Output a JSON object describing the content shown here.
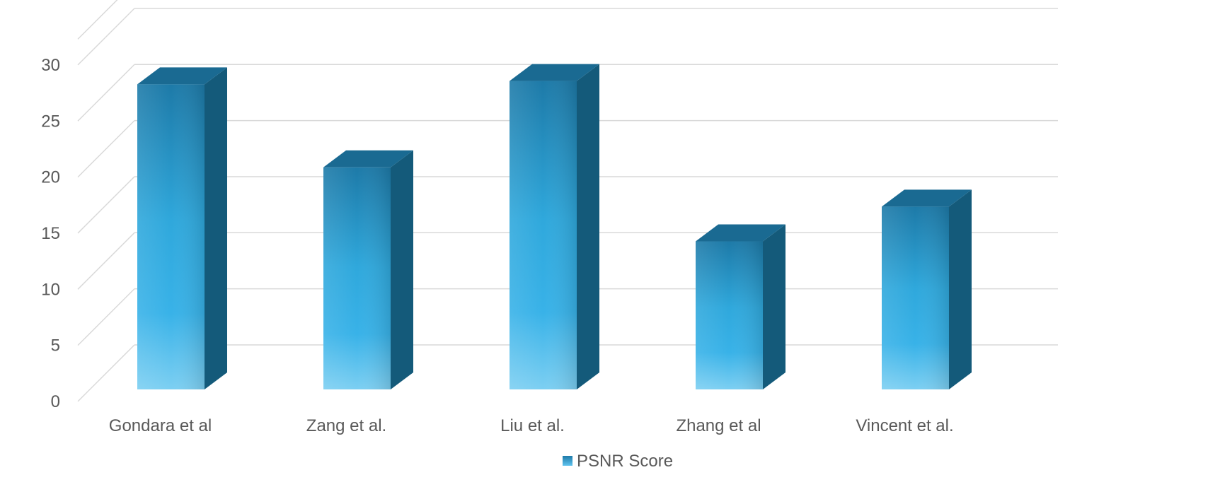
{
  "chart_data": {
    "type": "bar",
    "style": "3d-column",
    "categories": [
      "Gondara et al",
      "Zang et al.",
      "Liu et al.",
      "Zhang et al",
      "Vincent et al."
    ],
    "series": [
      {
        "name": "PSNR Score",
        "values": [
          27.2,
          19.8,
          27.5,
          13.2,
          16.3
        ]
      }
    ],
    "y_ticks": [
      "0",
      "5",
      "10",
      "15",
      "20",
      "25",
      "30"
    ],
    "ylim": [
      0,
      30
    ],
    "grid": true,
    "legend": "bottom-center",
    "colors": {
      "bar_front_top": "#1d7aa8",
      "bar_front_mid": "#33aee3",
      "bar_front_bottom": "#79cff2",
      "bar_side": "#145a7a",
      "bar_top": "#1a6a92",
      "grid": "#d9d9d9",
      "text": "#595959"
    }
  }
}
